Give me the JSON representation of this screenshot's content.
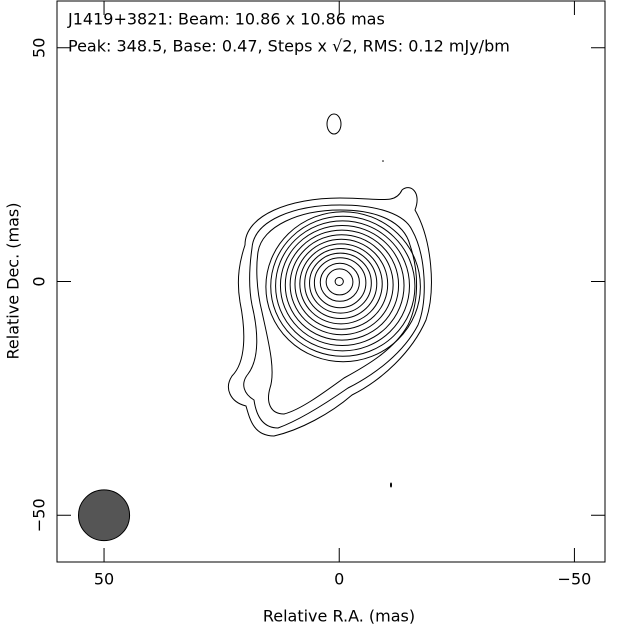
{
  "chart_data": {
    "type": "contour",
    "title": "J1419+3821: Beam: 10.86 x 10.86 mas",
    "subtitle": "Peak: 348.5, Base: 0.47, Steps x √2, RMS: 0.12 mJy/bm",
    "x_label": "Relative R.A. (mas)",
    "y_label": "Relative Dec. (mas)",
    "xlim": [
      60,
      -56.5
    ],
    "ylim": [
      -60,
      60
    ],
    "xticks": [
      50,
      0,
      {
        "value": -50,
        "label": "−50"
      }
    ],
    "yticks": [
      {
        "value": -50,
        "label": "−50"
      },
      0,
      50
    ],
    "beam": {
      "x": 50,
      "y": -50,
      "major": 10.86,
      "minor": 10.86,
      "color": "#555555"
    }
  }
}
